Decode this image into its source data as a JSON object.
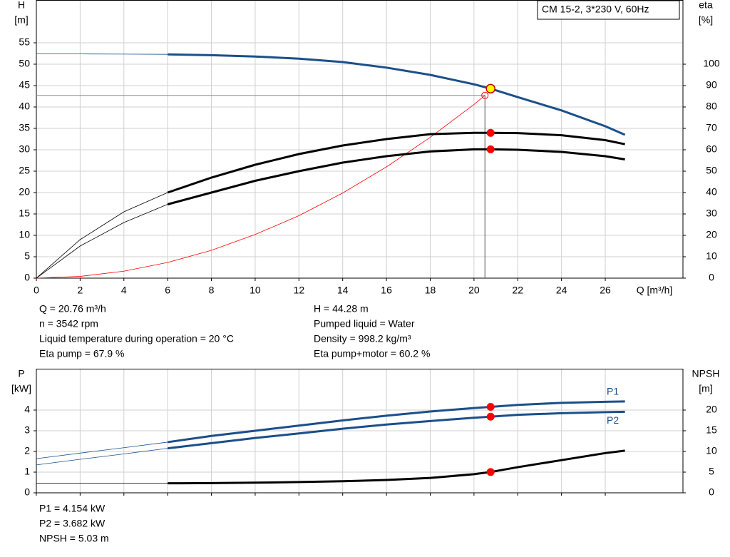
{
  "chart_data": [
    {
      "type": "line",
      "box_label": "CM 15-2, 3*230 V, 60Hz",
      "x_label": "Q [m³/h]",
      "y_label": [
        "H",
        "[m]"
      ],
      "y2_label": [
        "eta",
        "[%]"
      ],
      "xlim": [
        0,
        29.55
      ],
      "xticks": [
        0,
        2,
        4,
        6,
        8,
        10,
        12,
        14,
        16,
        18,
        20,
        22,
        24,
        26
      ],
      "ylim": [
        0,
        65
      ],
      "yticks": [
        0,
        5,
        10,
        15,
        20,
        25,
        30,
        35,
        40,
        45,
        50,
        55
      ],
      "y2lim": [
        0,
        130
      ],
      "y2ticks": [
        0,
        10,
        20,
        30,
        40,
        50,
        60,
        70,
        80,
        90,
        100
      ],
      "grid": true,
      "operating_point": {
        "x": 20.76
      },
      "x": [
        0,
        2,
        4,
        6,
        8,
        10,
        12,
        14,
        16,
        18,
        20,
        20.76,
        22,
        24,
        26,
        26.9
      ],
      "series": [
        {
          "color": "#1b4f8a",
          "marker_color": "#ffff00",
          "values": [
            52.4,
            52.4,
            52.35,
            52.3,
            52.1,
            51.8,
            51.3,
            50.5,
            49.2,
            47.5,
            45.3,
            44.28,
            42.3,
            39.2,
            35.5,
            33.5
          ]
        },
        {
          "color": "#000000",
          "marker_color": "#ff0000",
          "axis": "y2",
          "values": [
            0,
            18,
            31,
            40,
            47,
            53,
            58,
            62,
            65,
            67.3,
            67.9,
            67.9,
            67.8,
            66.8,
            64.5,
            62.6
          ]
        },
        {
          "color": "#000000",
          "marker_color": "#ff0000",
          "axis": "y2",
          "values": [
            0,
            15,
            26,
            34.5,
            40,
            45.5,
            50,
            54,
            57,
            59.2,
            60.2,
            60.2,
            60,
            59,
            57,
            55.5
          ]
        }
      ],
      "system_curve": {
        "color": "#ff0000",
        "x": [
          0,
          2,
          4,
          6,
          8,
          10,
          12,
          14,
          16,
          18,
          20,
          20.5
        ],
        "values": [
          0,
          0.41,
          1.63,
          3.66,
          6.5,
          10.2,
          14.6,
          19.9,
          26.0,
          32.9,
          40.6,
          42.7
        ]
      },
      "info": [
        [
          "Q = 20.76 m³/h",
          "n = 3542 rpm",
          "Liquid temperature during operation = 20 °C",
          "Eta pump = 67.9 %"
        ],
        [
          "H = 44.28 m",
          "Pumped liquid = Water",
          "Density = 998.2 kg/m³",
          "Eta pump+motor = 60.2 %"
        ]
      ]
    },
    {
      "type": "line",
      "y_label": [
        "P",
        "[kW]"
      ],
      "y2_label": [
        "NPSH",
        "[m]"
      ],
      "xlim": [
        0,
        29.55
      ],
      "xticks": [
        0,
        2,
        4,
        6,
        8,
        10,
        12,
        14,
        16,
        18,
        20,
        22,
        24,
        26
      ],
      "ylim": [
        0,
        6
      ],
      "yticks": [
        0,
        1,
        2,
        3,
        4
      ],
      "y2lim": [
        0,
        30
      ],
      "y2ticks": [
        0,
        5,
        10,
        15,
        20
      ],
      "grid": true,
      "operating_point": {
        "x": 20.76
      },
      "x": [
        0,
        2,
        4,
        6,
        8,
        10,
        12,
        14,
        16,
        18,
        20,
        20.76,
        22,
        24,
        26,
        26.9
      ],
      "series": [
        {
          "name": "P1",
          "color": "#1b4f8a",
          "marker_color": "#ff0000",
          "values": [
            1.65,
            1.92,
            2.18,
            2.45,
            2.75,
            3.0,
            3.25,
            3.5,
            3.73,
            3.93,
            4.1,
            4.154,
            4.25,
            4.35,
            4.4,
            4.42
          ]
        },
        {
          "name": "P2",
          "color": "#1b4f8a",
          "marker_color": "#ff0000",
          "values": [
            1.35,
            1.62,
            1.88,
            2.15,
            2.4,
            2.65,
            2.87,
            3.1,
            3.3,
            3.47,
            3.63,
            3.682,
            3.77,
            3.85,
            3.9,
            3.92
          ]
        },
        {
          "color": "#000000",
          "marker_color": "#ff0000",
          "axis": "y2",
          "values": [
            2.3,
            2.3,
            2.3,
            2.3,
            2.35,
            2.45,
            2.6,
            2.8,
            3.1,
            3.6,
            4.5,
            5.03,
            6.2,
            7.9,
            9.6,
            10.2
          ]
        }
      ],
      "info": [
        [
          "P1 = 4.154 kW",
          "P2 = 3.682 kW",
          "NPSH = 5.03 m"
        ]
      ]
    }
  ]
}
